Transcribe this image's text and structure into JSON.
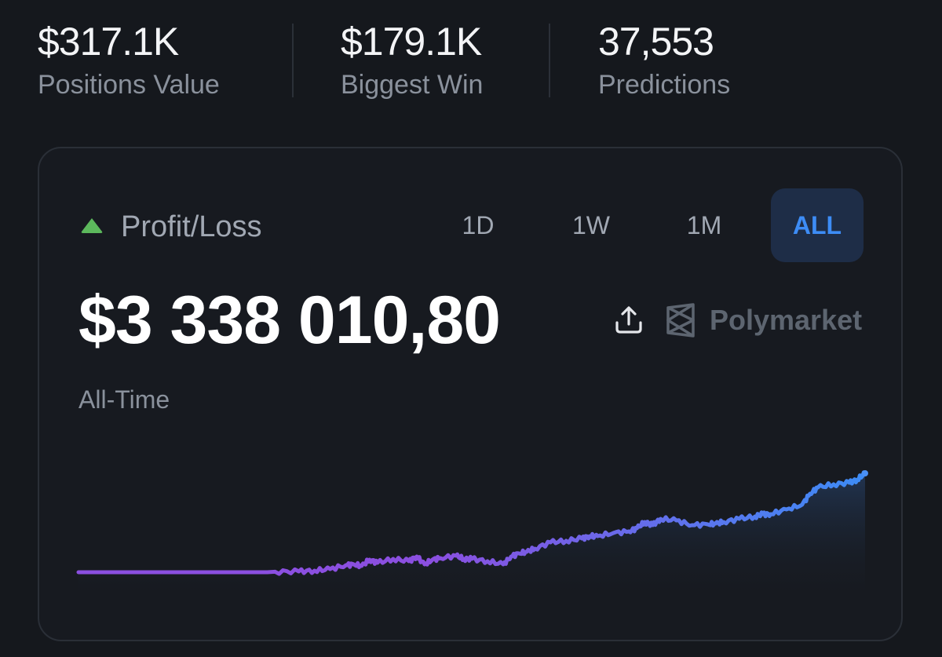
{
  "stats": [
    {
      "value": "$317.1K",
      "label": "Positions Value"
    },
    {
      "value": "$179.1K",
      "label": "Biggest Win"
    },
    {
      "value": "37,553",
      "label": "Predictions"
    }
  ],
  "card": {
    "title": "Profit/Loss",
    "trend_icon": "triangle-up-icon",
    "ranges": [
      "1D",
      "1W",
      "1M",
      "ALL"
    ],
    "selected_range": "ALL",
    "value": "$3 338 010,80",
    "period": "All-Time",
    "brand": "Polymarket",
    "share_icon": "share-upload-icon"
  },
  "colors": {
    "background": "#15181d",
    "card": "#171a20",
    "positive": "#5cb85c",
    "accent": "#3d8cf5",
    "line_start": "#8b4fe0",
    "line_end": "#3d8cf5"
  },
  "chart_data": {
    "type": "line",
    "x": [
      0,
      5,
      10,
      15,
      20,
      24,
      25,
      28,
      30,
      32,
      34,
      35,
      36,
      37,
      38,
      40,
      42,
      43,
      44,
      45,
      46,
      48,
      49,
      50,
      52,
      54,
      55,
      56,
      57,
      58,
      60,
      62,
      64,
      65,
      66,
      68,
      70,
      71,
      72,
      73,
      74,
      76,
      78,
      80,
      81,
      82,
      84,
      86,
      87,
      88,
      90,
      92,
      93,
      94,
      96,
      98,
      99,
      100
    ],
    "values": [
      0,
      0,
      0,
      0,
      0,
      0,
      0.3,
      0.5,
      1.0,
      2.0,
      4.5,
      5.0,
      4.0,
      8.0,
      6.0,
      8.5,
      7.0,
      10.0,
      5.0,
      8.0,
      9.0,
      10.5,
      8.5,
      8.5,
      7.0,
      5.0,
      10.0,
      12.0,
      13.0,
      15.0,
      19.0,
      20.0,
      21.5,
      23.0,
      23.0,
      25.0,
      26.0,
      28.0,
      32.0,
      30.0,
      34.0,
      33.0,
      30.0,
      30.5,
      31.0,
      32.0,
      34.0,
      35.5,
      37.0,
      37.0,
      40.0,
      43.0,
      50.0,
      54.0,
      56.0,
      57.0,
      59.0,
      63.0
    ],
    "title": "",
    "xlabel": "",
    "ylabel": "",
    "ylim": [
      -10,
      70
    ],
    "grid": false,
    "legend": "none"
  }
}
